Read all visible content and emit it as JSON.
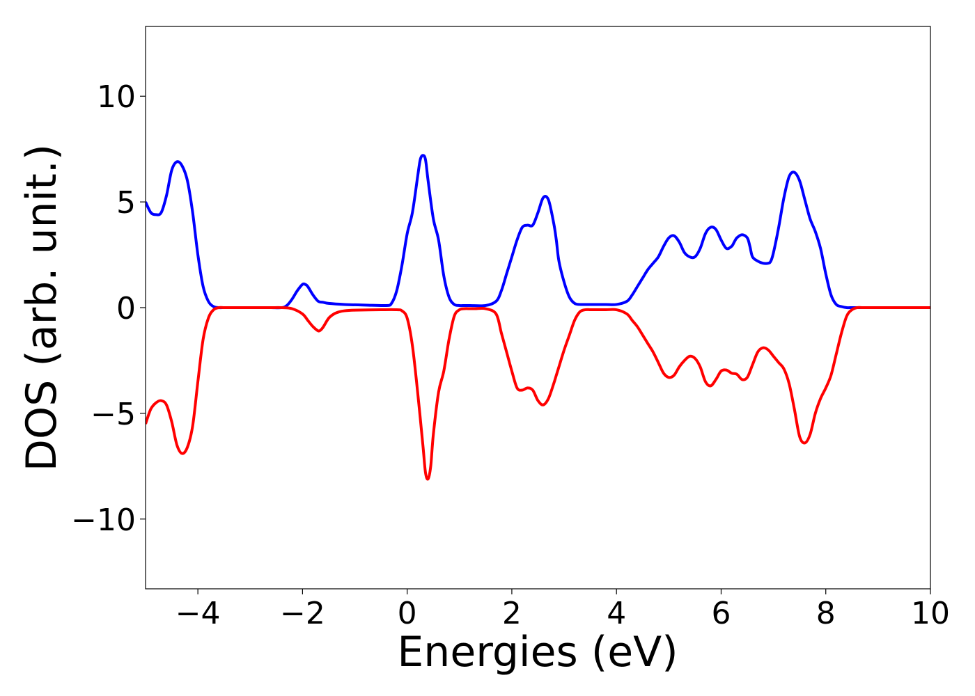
{
  "chart_data": {
    "type": "line",
    "title": "",
    "xlabel": "Energies (eV)",
    "ylabel": "DOS (arb. unit.)",
    "xlim": [
      -5,
      10
    ],
    "ylim": [
      -13.3,
      13.3
    ],
    "xticks": [
      -4,
      -2,
      0,
      2,
      4,
      6,
      8,
      10
    ],
    "xtick_labels": [
      "−4",
      "−2",
      "0",
      "2",
      "4",
      "6",
      "8",
      "10"
    ],
    "yticks": [
      -10,
      -5,
      0,
      5,
      10
    ],
    "ytick_labels": [
      "−10",
      "−5",
      "0",
      "5",
      "10"
    ],
    "grid": false,
    "legend": "none",
    "series": [
      {
        "color": "#0000ff",
        "x": [
          -5.0,
          -4.9,
          -4.8,
          -4.7,
          -4.6,
          -4.5,
          -4.4,
          -4.3,
          -4.2,
          -4.1,
          -4.0,
          -3.9,
          -3.8,
          -3.7,
          -3.6,
          -3.5,
          -3.4,
          -3.2,
          -3.0,
          -2.8,
          -2.6,
          -2.4,
          -2.3,
          -2.2,
          -2.1,
          -2.0,
          -1.95,
          -1.9,
          -1.8,
          -1.7,
          -1.6,
          -1.5,
          -1.2,
          -0.8,
          -0.4,
          -0.3,
          -0.2,
          -0.1,
          0.0,
          0.1,
          0.2,
          0.25,
          0.3,
          0.35,
          0.4,
          0.5,
          0.6,
          0.7,
          0.8,
          0.9,
          1.0,
          1.1,
          1.2,
          1.5,
          1.7,
          1.8,
          1.9,
          2.0,
          2.1,
          2.2,
          2.3,
          2.4,
          2.5,
          2.6,
          2.7,
          2.8,
          2.85,
          2.9,
          3.0,
          3.1,
          3.2,
          3.3,
          3.4,
          3.6,
          3.8,
          4.0,
          4.2,
          4.3,
          4.4,
          4.5,
          4.6,
          4.7,
          4.8,
          4.9,
          5.0,
          5.1,
          5.2,
          5.3,
          5.4,
          5.5,
          5.6,
          5.7,
          5.8,
          5.9,
          6.0,
          6.1,
          6.2,
          6.25,
          6.3,
          6.4,
          6.5,
          6.55,
          6.6,
          6.7,
          6.8,
          6.9,
          6.95,
          7.0,
          7.1,
          7.2,
          7.3,
          7.4,
          7.5,
          7.6,
          7.7,
          7.8,
          7.9,
          8.0,
          8.1,
          8.2,
          8.3,
          8.4,
          8.5,
          8.6,
          8.7,
          8.8,
          8.9,
          9.0,
          9.1,
          9.2,
          9.4,
          9.6,
          10.0
        ],
        "y": [
          5.0,
          4.5,
          4.4,
          4.5,
          5.3,
          6.5,
          6.9,
          6.7,
          6.0,
          4.5,
          2.5,
          1.0,
          0.3,
          0.05,
          0.0,
          0.0,
          0.0,
          0.0,
          0.0,
          0.0,
          0.0,
          0.0,
          0.1,
          0.4,
          0.8,
          1.1,
          1.1,
          1.0,
          0.6,
          0.3,
          0.25,
          0.2,
          0.15,
          0.12,
          0.1,
          0.2,
          0.8,
          2.0,
          3.5,
          4.5,
          6.2,
          7.0,
          7.2,
          7.0,
          6.0,
          4.2,
          3.2,
          1.5,
          0.5,
          0.15,
          0.1,
          0.1,
          0.1,
          0.1,
          0.3,
          0.8,
          1.6,
          2.4,
          3.2,
          3.8,
          3.9,
          3.9,
          4.5,
          5.2,
          5.1,
          4.0,
          3.2,
          2.2,
          1.2,
          0.5,
          0.2,
          0.15,
          0.15,
          0.15,
          0.15,
          0.15,
          0.3,
          0.6,
          1.0,
          1.4,
          1.8,
          2.1,
          2.4,
          2.9,
          3.3,
          3.4,
          3.1,
          2.6,
          2.4,
          2.4,
          2.8,
          3.5,
          3.8,
          3.7,
          3.2,
          2.8,
          2.9,
          3.1,
          3.3,
          3.45,
          3.3,
          2.9,
          2.4,
          2.2,
          2.1,
          2.1,
          2.2,
          2.6,
          3.8,
          5.2,
          6.2,
          6.4,
          6.0,
          5.1,
          4.2,
          3.6,
          2.8,
          1.6,
          0.6,
          0.15,
          0.05,
          0.0,
          0.0,
          0.0,
          0.0,
          0.0,
          0.0,
          0.0,
          0.0,
          0.0,
          0.0,
          0.0,
          0.0
        ]
      },
      {
        "color": "#ff0000",
        "x": [
          -5.0,
          -4.9,
          -4.8,
          -4.7,
          -4.6,
          -4.5,
          -4.4,
          -4.3,
          -4.2,
          -4.1,
          -4.0,
          -3.9,
          -3.8,
          -3.7,
          -3.6,
          -3.5,
          -3.4,
          -3.2,
          -3.0,
          -2.8,
          -2.6,
          -2.4,
          -2.2,
          -2.0,
          -1.9,
          -1.8,
          -1.7,
          -1.65,
          -1.6,
          -1.5,
          -1.4,
          -1.3,
          -1.2,
          -1.0,
          -0.5,
          -0.2,
          -0.1,
          0.0,
          0.1,
          0.2,
          0.3,
          0.35,
          0.4,
          0.45,
          0.5,
          0.6,
          0.7,
          0.8,
          0.9,
          1.0,
          1.1,
          1.2,
          1.3,
          1.5,
          1.7,
          1.8,
          1.9,
          2.0,
          2.1,
          2.2,
          2.3,
          2.4,
          2.5,
          2.6,
          2.7,
          2.8,
          2.85,
          2.9,
          3.0,
          3.1,
          3.2,
          3.3,
          3.4,
          3.5,
          3.6,
          3.8,
          4.0,
          4.2,
          4.3,
          4.4,
          4.5,
          4.6,
          4.7,
          4.8,
          4.9,
          5.0,
          5.1,
          5.2,
          5.3,
          5.4,
          5.5,
          5.6,
          5.7,
          5.8,
          5.9,
          6.0,
          6.1,
          6.2,
          6.3,
          6.4,
          6.5,
          6.6,
          6.7,
          6.8,
          6.9,
          7.0,
          7.1,
          7.2,
          7.3,
          7.4,
          7.5,
          7.6,
          7.7,
          7.8,
          7.9,
          8.0,
          8.1,
          8.2,
          8.3,
          8.4,
          8.5,
          8.6,
          8.7,
          8.8,
          8.9,
          9.0,
          9.1,
          9.2,
          9.3,
          9.4,
          9.6,
          10.0
        ],
        "y": [
          -5.5,
          -4.8,
          -4.5,
          -4.4,
          -4.6,
          -5.4,
          -6.5,
          -6.9,
          -6.6,
          -5.6,
          -3.5,
          -1.5,
          -0.5,
          -0.1,
          0.0,
          0.0,
          0.0,
          0.0,
          0.0,
          0.0,
          0.0,
          0.0,
          -0.05,
          -0.3,
          -0.6,
          -0.9,
          -1.1,
          -1.05,
          -0.9,
          -0.5,
          -0.3,
          -0.2,
          -0.15,
          -0.12,
          -0.1,
          -0.1,
          -0.15,
          -0.5,
          -1.8,
          -4.0,
          -6.5,
          -7.8,
          -8.1,
          -7.5,
          -6.0,
          -4.0,
          -3.0,
          -1.5,
          -0.4,
          -0.1,
          -0.05,
          -0.05,
          -0.05,
          -0.05,
          -0.3,
          -1.2,
          -2.1,
          -3.0,
          -3.8,
          -3.9,
          -3.8,
          -3.9,
          -4.4,
          -4.6,
          -4.3,
          -3.6,
          -3.2,
          -2.8,
          -2.0,
          -1.3,
          -0.6,
          -0.2,
          -0.1,
          -0.1,
          -0.1,
          -0.1,
          -0.1,
          -0.3,
          -0.6,
          -0.9,
          -1.3,
          -1.7,
          -2.1,
          -2.6,
          -3.1,
          -3.3,
          -3.2,
          -2.8,
          -2.5,
          -2.3,
          -2.4,
          -2.8,
          -3.5,
          -3.7,
          -3.4,
          -3.0,
          -2.95,
          -3.1,
          -3.15,
          -3.4,
          -3.3,
          -2.7,
          -2.1,
          -1.9,
          -2.0,
          -2.3,
          -2.6,
          -2.9,
          -3.6,
          -4.8,
          -6.1,
          -6.4,
          -6.0,
          -5.0,
          -4.3,
          -3.8,
          -3.2,
          -2.2,
          -1.2,
          -0.4,
          -0.1,
          0.0,
          0.0,
          0.0,
          0.0,
          0.0,
          0.0,
          0.0,
          0.0,
          0.0,
          0.0,
          0.0
        ]
      }
    ]
  }
}
